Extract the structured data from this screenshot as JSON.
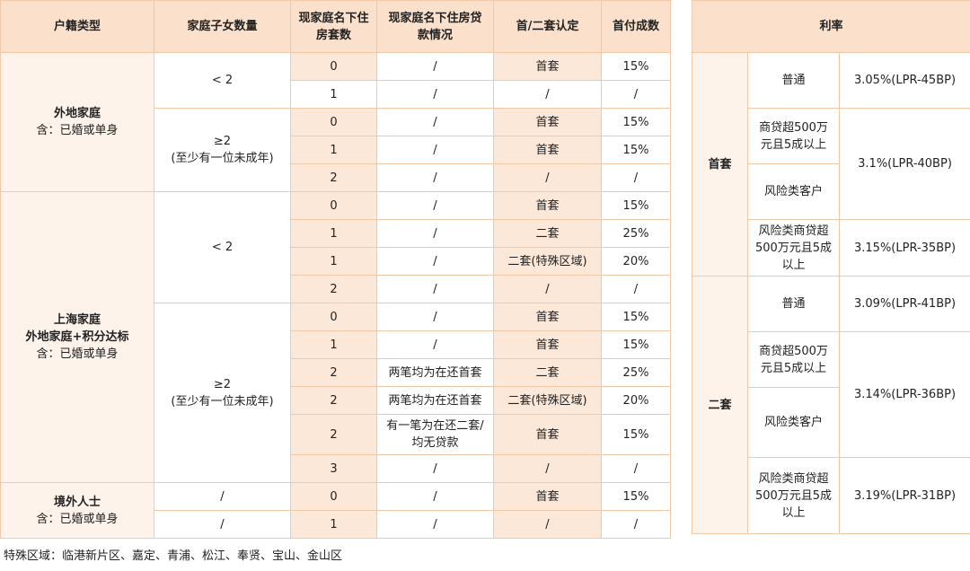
{
  "headers": {
    "hukou": "户籍类型",
    "children": "家庭子女数量",
    "houses_l1": "现家庭名下住",
    "houses_l2": "房套数",
    "loans_l1": "现家庭名下住房贷",
    "loans_l2": "款情况",
    "first_second": "首/二套认定",
    "down_payment": "首付成数",
    "rate": "利率"
  },
  "groups": {
    "outside": {
      "name": "外地家庭",
      "note": "含：已婚或单身"
    },
    "shanghai": {
      "name_l1": "上海家庭",
      "name_l2": "外地家庭+积分达标",
      "note": "含：已婚或单身"
    },
    "overseas": {
      "name": "境外人士",
      "note": "含：已婚或单身"
    }
  },
  "child_labels": {
    "lt2": "< 2",
    "ge2": "≥2",
    "ge2_note": "(至少有一位未成年)",
    "slash": "/"
  },
  "rows": [
    {
      "houses": "0",
      "loans": "/",
      "status": "首套",
      "down": "15%"
    },
    {
      "houses": "1",
      "loans": "/",
      "status": "/",
      "down": "/"
    },
    {
      "houses": "0",
      "loans": "/",
      "status": "首套",
      "down": "15%"
    },
    {
      "houses": "1",
      "loans": "/",
      "status": "首套",
      "down": "15%"
    },
    {
      "houses": "2",
      "loans": "/",
      "status": "/",
      "down": "/"
    },
    {
      "houses": "0",
      "loans": "/",
      "status": "首套",
      "down": "15%"
    },
    {
      "houses": "1",
      "loans": "/",
      "status": "二套",
      "down": "25%"
    },
    {
      "houses": "1",
      "loans": "/",
      "status": "二套(特殊区域)",
      "down": "20%"
    },
    {
      "houses": "2",
      "loans": "/",
      "status": "/",
      "down": "/"
    },
    {
      "houses": "0",
      "loans": "/",
      "status": "首套",
      "down": "15%"
    },
    {
      "houses": "1",
      "loans": "/",
      "status": "首套",
      "down": "15%"
    },
    {
      "houses": "2",
      "loans": "两笔均为在还首套",
      "status": "二套",
      "down": "25%"
    },
    {
      "houses": "2",
      "loans": "两笔均为在还首套",
      "status": "二套(特殊区域)",
      "down": "20%"
    },
    {
      "houses": "2",
      "loans": "有一笔为在还二套/",
      "loans2": "均无贷款",
      "status": "首套",
      "down": "15%"
    },
    {
      "houses": "3",
      "loans": "/",
      "status": "/",
      "down": "/"
    },
    {
      "houses": "0",
      "loans": "/",
      "status": "首套",
      "down": "15%"
    },
    {
      "houses": "1",
      "loans": "/",
      "status": "/",
      "down": "/"
    }
  ],
  "rates": {
    "first": {
      "label": "首套",
      "normal": "普通",
      "normal_rate": "3.05%(LPR-45BP)",
      "big_loan_l1": "商贷超500万",
      "big_loan_l2": "元且5成以上",
      "risk": "风险类客户",
      "mid_rate": "3.1%(LPR-40BP)",
      "risk_big_l1": "风险类商贷超",
      "risk_big_l2": "500万元且5成",
      "risk_big_l3": "以上",
      "risk_big_rate": "3.15%(LPR-35BP)"
    },
    "second": {
      "label": "二套",
      "normal": "普通",
      "normal_rate": "3.09%(LPR-41BP)",
      "big_loan_l1": "商贷超500万",
      "big_loan_l2": "元且5成以上",
      "risk": "风险类客户",
      "mid_rate": "3.14%(LPR-36BP)",
      "risk_big_l1": "风险类商贷超",
      "risk_big_l2": "500万元且5成",
      "risk_big_l3": "以上",
      "risk_big_rate": "3.19%(LPR-31BP)"
    }
  },
  "footnote": "特殊区域：临港新片区、嘉定、青浦、松江、奉贤、宝山、金山区"
}
